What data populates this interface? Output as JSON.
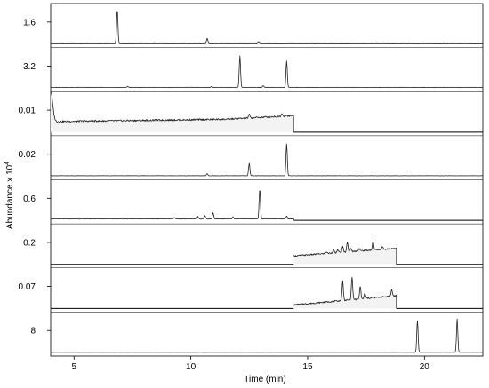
{
  "chart_data": {
    "type": "line",
    "xlabel": "Time (min)",
    "ylabel": "Abundance x 10",
    "ylabel_exponent": "4",
    "xlim": [
      4,
      22.5
    ],
    "x_ticks": [
      {
        "value": 5,
        "label": "5"
      },
      {
        "value": 10,
        "label": "10"
      },
      {
        "value": 15,
        "label": "15"
      },
      {
        "value": 20,
        "label": "20"
      }
    ],
    "series": [
      {
        "label": "1.6",
        "range": [
          4,
          22.5
        ],
        "base": 0.03,
        "noise": 0.005,
        "hump": null,
        "peaks": [
          [
            6.85,
            0.95
          ],
          [
            10.7,
            0.13
          ],
          [
            12.9,
            0.04
          ]
        ]
      },
      {
        "label": "3.2",
        "range": [
          4,
          22.5
        ],
        "base": 0.02,
        "noise": 0.005,
        "hump": null,
        "peaks": [
          [
            7.3,
            0.03
          ],
          [
            10.9,
            0.03
          ],
          [
            12.1,
            0.9
          ],
          [
            13.1,
            0.05
          ],
          [
            14.1,
            0.75
          ]
        ]
      },
      {
        "label": "0.01",
        "range": [
          4,
          14.4
        ],
        "base": 0.3,
        "noise": 0.025,
        "hump": {
          "slope": 0.009,
          "start": 11.5,
          "rise": 0.08
        },
        "initial_spike": 0.85,
        "peaks": [
          [
            12.5,
            0.1
          ],
          [
            13.9,
            0.08
          ]
        ]
      },
      {
        "label": "0.02",
        "range": [
          4,
          22.5
        ],
        "base": 0.015,
        "noise": 0.004,
        "hump": null,
        "peaks": [
          [
            10.7,
            0.06
          ],
          [
            12.5,
            0.35
          ],
          [
            14.1,
            0.9
          ]
        ]
      },
      {
        "label": "0.6",
        "range": [
          4,
          14.4
        ],
        "base": 0.04,
        "noise": 0.006,
        "hump": null,
        "peaks": [
          [
            9.3,
            0.04
          ],
          [
            10.3,
            0.07
          ],
          [
            10.6,
            0.1
          ],
          [
            10.95,
            0.18
          ],
          [
            11.8,
            0.06
          ],
          [
            12.95,
            0.85
          ],
          [
            14.1,
            0.08
          ]
        ]
      },
      {
        "label": "0.2",
        "range": [
          14.4,
          18.8
        ],
        "base": 0.24,
        "noise": 0.02,
        "hump": {
          "slope": 0.05
        },
        "peaks": [
          [
            15.8,
            0.05
          ],
          [
            16.1,
            0.1
          ],
          [
            16.3,
            0.08
          ],
          [
            16.5,
            0.16
          ],
          [
            16.7,
            0.3
          ],
          [
            16.85,
            0.1
          ],
          [
            17.2,
            0.07
          ],
          [
            17.8,
            0.25
          ],
          [
            18.2,
            0.07
          ]
        ]
      },
      {
        "label": "0.07",
        "range": [
          14.4,
          18.8
        ],
        "base": 0.1,
        "noise": 0.02,
        "hump": {
          "slope": 0.06
        },
        "peaks": [
          [
            16.5,
            0.55
          ],
          [
            16.9,
            0.65
          ],
          [
            17.25,
            0.35
          ],
          [
            17.45,
            0.15
          ],
          [
            18.6,
            0.18
          ]
        ]
      },
      {
        "label": "8",
        "range": [
          4,
          22.5
        ],
        "base": 0.005,
        "noise": 0.002,
        "hump": null,
        "peaks": [
          [
            19.7,
            0.9
          ],
          [
            21.4,
            0.95
          ]
        ]
      }
    ]
  }
}
